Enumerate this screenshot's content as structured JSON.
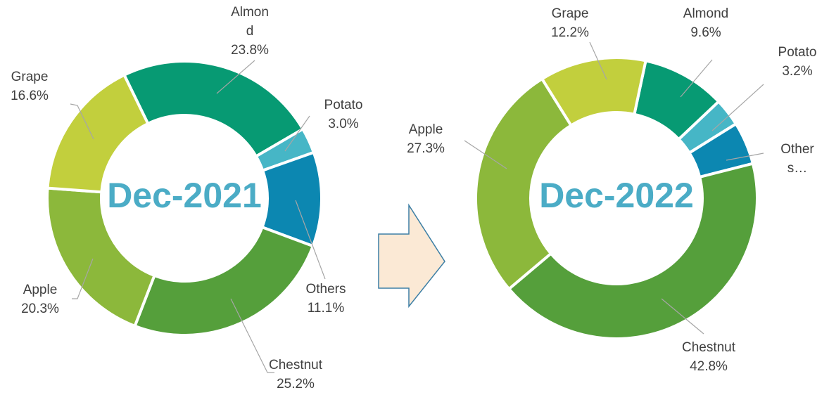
{
  "chart_data": [
    {
      "type": "donut",
      "title": "Dec-2021",
      "categories": [
        "Almond",
        "Potato",
        "Others",
        "Chestnut",
        "Apple",
        "Grape"
      ],
      "values": [
        23.8,
        3.0,
        11.1,
        25.2,
        20.3,
        16.6
      ],
      "value_labels": [
        "23.8%",
        "3.0%",
        "11.1%",
        "25.2%",
        "20.3%",
        "16.6%"
      ],
      "colors": [
        "#079a73",
        "#46b6c6",
        "#0c87b1",
        "#559f3b",
        "#8cb83b",
        "#c2cf3d"
      ]
    },
    {
      "type": "donut",
      "title": "Dec-2022",
      "categories": [
        "Almond",
        "Potato",
        "Others…",
        "Chestnut",
        "Apple",
        "Grape"
      ],
      "values": [
        9.6,
        3.2,
        4.9,
        42.8,
        27.3,
        12.2
      ],
      "value_labels": [
        "9.6%",
        "3.2%",
        null,
        "42.8%",
        "27.3%",
        "12.2%"
      ],
      "colors": [
        "#079a73",
        "#46b6c6",
        "#0c87b1",
        "#559f3b",
        "#8cb83b",
        "#c2cf3d"
      ]
    }
  ]
}
